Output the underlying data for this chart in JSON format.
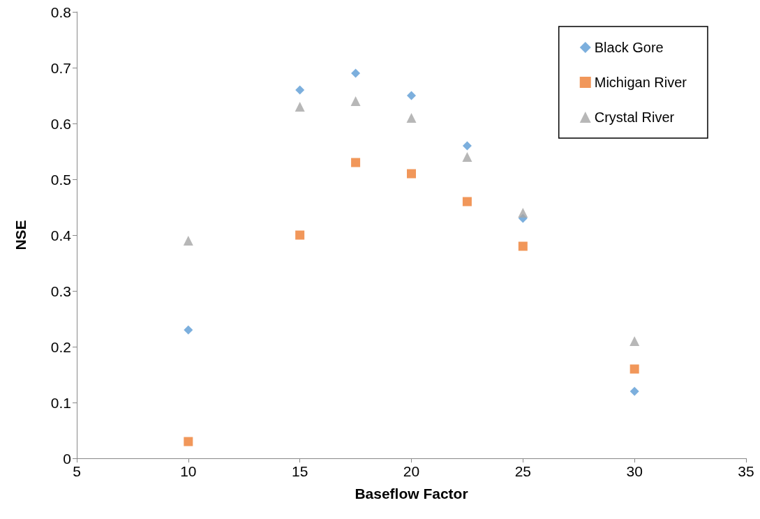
{
  "chart_data": {
    "type": "scatter",
    "xlabel": "Baseflow Factor",
    "ylabel": "NSE",
    "x": [
      10,
      15,
      17.5,
      20,
      22.5,
      25,
      30
    ],
    "series": [
      {
        "name": "Black Gore",
        "color": "#5b9bd5",
        "marker": "diamond",
        "values": [
          0.23,
          0.66,
          0.69,
          0.65,
          0.56,
          0.43,
          0.12
        ]
      },
      {
        "name": "Michigan River",
        "color": "#ed7d31",
        "marker": "square",
        "values": [
          0.03,
          0.4,
          0.53,
          0.51,
          0.46,
          0.38,
          0.16
        ]
      },
      {
        "name": "Crystal River",
        "color": "#a5a5a5",
        "marker": "triangle",
        "values": [
          0.39,
          0.63,
          0.64,
          0.61,
          0.54,
          0.44,
          0.21
        ]
      }
    ],
    "xlim": [
      5,
      35
    ],
    "xticks": [
      5,
      10,
      15,
      20,
      25,
      30,
      35
    ],
    "ylim": [
      0,
      0.8
    ],
    "yticks": [
      0,
      0.1,
      0.2,
      0.3,
      0.4,
      0.5,
      0.6,
      0.7,
      0.8
    ],
    "grid": false,
    "legend": "top right"
  }
}
